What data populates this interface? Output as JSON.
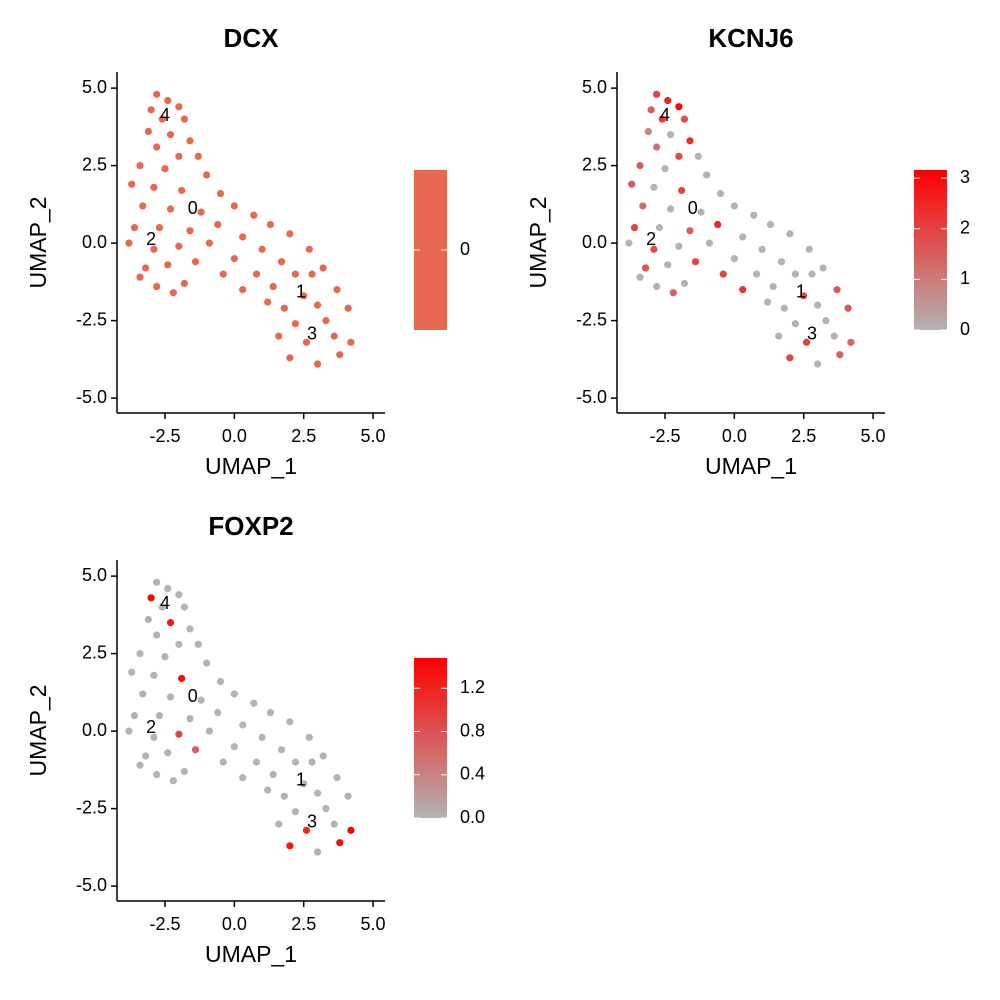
{
  "chart_data": [
    {
      "type": "scatter",
      "title": "DCX",
      "xlabel": "UMAP_1",
      "ylabel": "UMAP_2",
      "x": [
        -2.8,
        -2.4,
        -2.0,
        -3.0,
        -2.6,
        -1.8,
        -3.1,
        -2.3,
        -1.6,
        -2.8,
        -1.3,
        -2.0,
        -3.4,
        -2.5,
        -1.0,
        -3.7,
        -2.9,
        -1.9,
        -0.5,
        -3.3,
        -2.3,
        -1.2,
        0.0,
        -3.6,
        -2.7,
        -1.6,
        -0.6,
        0.7,
        -3.8,
        -2.9,
        -2.0,
        -0.9,
        0.3,
        1.3,
        -3.2,
        -2.4,
        -1.4,
        0.0,
        1.0,
        2.0,
        -2.8,
        -1.8,
        -0.4,
        0.8,
        1.7,
        2.7,
        -2.2,
        0.3,
        1.4,
        2.2,
        3.2,
        3.7,
        2.5,
        1.8,
        3.0,
        4.1,
        2.2,
        3.3,
        1.6,
        2.6,
        3.6,
        4.2,
        2.0,
        3.0,
        3.8,
        1.2,
        -3.4,
        2.8
      ],
      "y": [
        4.8,
        4.6,
        4.4,
        4.3,
        4.0,
        4.0,
        3.6,
        3.5,
        3.3,
        3.1,
        2.8,
        2.8,
        2.5,
        2.4,
        2.2,
        1.9,
        1.8,
        1.7,
        1.6,
        1.2,
        1.1,
        1.0,
        1.2,
        0.5,
        0.5,
        0.4,
        0.6,
        0.9,
        0.0,
        -0.2,
        -0.1,
        0.0,
        0.2,
        0.6,
        -0.8,
        -0.7,
        -0.6,
        -0.5,
        -0.2,
        0.3,
        -1.4,
        -1.3,
        -1.0,
        -1.0,
        -0.6,
        -0.2,
        -1.6,
        -1.5,
        -1.4,
        -1.0,
        -0.8,
        -1.5,
        -1.7,
        -2.1,
        -2.0,
        -2.1,
        -2.6,
        -2.5,
        -3.0,
        -3.2,
        -3.0,
        -3.2,
        -3.7,
        -3.9,
        -3.6,
        -1.9,
        -1.1,
        -1.0
      ],
      "values": [
        0,
        0,
        0,
        0,
        0,
        0,
        0,
        0,
        0,
        0,
        0,
        0,
        0,
        0,
        0,
        0,
        0,
        0,
        0,
        0,
        0,
        0,
        0,
        0,
        0,
        0,
        0,
        0,
        0,
        0,
        0,
        0,
        0,
        0,
        0,
        0,
        0,
        0,
        0,
        0,
        0,
        0,
        0,
        0,
        0,
        0,
        0,
        0,
        0,
        0,
        0,
        0,
        0,
        0,
        0,
        0,
        0,
        0,
        0,
        0,
        0,
        0,
        0,
        0,
        0,
        0,
        0,
        0
      ],
      "colors": [
        "#e8684f",
        "#e8684f"
      ],
      "clim": [
        -0.5,
        0.5
      ],
      "cticks": [
        0
      ],
      "xlim": [
        -4.23,
        5.43
      ],
      "ylim": [
        -5.48,
        5.52
      ],
      "xticks": [
        -2.5,
        {
          "value": 0,
          "label": "0.0"
        },
        2.5,
        {
          "value": 5,
          "label": "5.0"
        }
      ],
      "yticks": [
        {
          "value": -5,
          "label": "-5.0"
        },
        -2.5,
        {
          "value": 0,
          "label": "0.0"
        },
        2.5,
        {
          "value": 5,
          "label": "5.0"
        }
      ],
      "annotations": [
        {
          "text": "4",
          "x": -2.5,
          "y": 4.1
        },
        {
          "text": "0",
          "x": -1.5,
          "y": 1.1
        },
        {
          "text": "2",
          "x": -3.0,
          "y": 0.1
        },
        {
          "text": "1",
          "x": 2.4,
          "y": -1.6
        },
        {
          "text": "3",
          "x": 2.8,
          "y": -2.95
        }
      ]
    },
    {
      "type": "scatter",
      "title": "KCNJ6",
      "xlabel": "UMAP_1",
      "ylabel": "UMAP_2",
      "x": [
        -2.8,
        -2.4,
        -2.0,
        -3.0,
        -2.6,
        -1.8,
        -3.1,
        -2.3,
        -1.6,
        -2.8,
        -1.3,
        -2.0,
        -3.4,
        -2.5,
        -1.0,
        -3.7,
        -2.9,
        -1.9,
        -0.5,
        -3.3,
        -2.3,
        -1.2,
        0.0,
        -3.6,
        -2.7,
        -1.6,
        -0.6,
        0.7,
        -3.8,
        -2.9,
        -2.0,
        -0.9,
        0.3,
        1.3,
        -3.2,
        -2.4,
        -1.4,
        0.0,
        1.0,
        2.0,
        -2.8,
        -1.8,
        -0.4,
        0.8,
        1.7,
        2.7,
        -2.2,
        0.3,
        1.4,
        2.2,
        3.2,
        3.7,
        2.5,
        1.8,
        3.0,
        4.1,
        2.2,
        3.3,
        1.6,
        2.6,
        3.6,
        4.2,
        2.0,
        3.0,
        3.8,
        1.2,
        -3.4,
        2.8
      ],
      "y": [
        4.8,
        4.6,
        4.4,
        4.3,
        4.0,
        4.0,
        3.6,
        3.5,
        3.3,
        3.1,
        2.8,
        2.8,
        2.5,
        2.4,
        2.2,
        1.9,
        1.8,
        1.7,
        1.6,
        1.2,
        1.1,
        1.0,
        1.2,
        0.5,
        0.5,
        0.4,
        0.6,
        0.9,
        0.0,
        -0.2,
        -0.1,
        0.0,
        0.2,
        0.6,
        -0.8,
        -0.7,
        -0.6,
        -0.5,
        -0.2,
        0.3,
        -1.4,
        -1.3,
        -1.0,
        -1.0,
        -0.6,
        -0.2,
        -1.6,
        -1.5,
        -1.4,
        -1.0,
        -0.8,
        -1.5,
        -1.7,
        -2.1,
        -2.0,
        -2.1,
        -2.6,
        -2.5,
        -3.0,
        -3.2,
        -3.0,
        -3.2,
        -3.7,
        -3.9,
        -3.6,
        -1.9,
        -1.1,
        -1.0
      ],
      "values": [
        2.0,
        2.5,
        3.1,
        1.5,
        2.2,
        1.8,
        0.8,
        0,
        2.4,
        1.2,
        0,
        1.9,
        1.5,
        0,
        0,
        1.6,
        0,
        2.0,
        0,
        1.3,
        0,
        0,
        0,
        2.0,
        0,
        1.5,
        2.5,
        0,
        0,
        1.8,
        0,
        0,
        0,
        0,
        1.7,
        0,
        1.9,
        0,
        0,
        0,
        0,
        0,
        2.0,
        0,
        0,
        0,
        1.5,
        2.3,
        0,
        0,
        0,
        1.6,
        1.8,
        0,
        0,
        1.7,
        0,
        0,
        0,
        2.0,
        0,
        1.4,
        1.9,
        0,
        1.5,
        0,
        0,
        0
      ],
      "colors": [
        "#b3b3b3",
        "#ff0000"
      ],
      "clim": [
        0,
        3.16
      ],
      "cticks": [
        0,
        1,
        2,
        3
      ],
      "xlim": [
        -4.23,
        5.43
      ],
      "ylim": [
        -5.48,
        5.52
      ],
      "xticks": [
        -2.5,
        {
          "value": 0,
          "label": "0.0"
        },
        2.5,
        {
          "value": 5,
          "label": "5.0"
        }
      ],
      "yticks": [
        {
          "value": -5,
          "label": "-5.0"
        },
        -2.5,
        {
          "value": 0,
          "label": "0.0"
        },
        2.5,
        {
          "value": 5,
          "label": "5.0"
        }
      ],
      "annotations": [
        {
          "text": "4",
          "x": -2.5,
          "y": 4.1
        },
        {
          "text": "0",
          "x": -1.5,
          "y": 1.1
        },
        {
          "text": "2",
          "x": -3.0,
          "y": 0.1
        },
        {
          "text": "1",
          "x": 2.4,
          "y": -1.6
        },
        {
          "text": "3",
          "x": 2.8,
          "y": -2.95
        }
      ]
    },
    {
      "type": "scatter",
      "title": "FOXP2",
      "xlabel": "UMAP_1",
      "ylabel": "UMAP_2",
      "x": [
        -2.8,
        -2.4,
        -2.0,
        -3.0,
        -2.6,
        -1.8,
        -3.1,
        -2.3,
        -1.6,
        -2.8,
        -1.3,
        -2.0,
        -3.4,
        -2.5,
        -1.0,
        -3.7,
        -2.9,
        -1.9,
        -0.5,
        -3.3,
        -2.3,
        -1.2,
        0.0,
        -3.6,
        -2.7,
        -1.6,
        -0.6,
        0.7,
        -3.8,
        -2.9,
        -2.0,
        -0.9,
        0.3,
        1.3,
        -3.2,
        -2.4,
        -1.4,
        0.0,
        1.0,
        2.0,
        -2.8,
        -1.8,
        -0.4,
        0.8,
        1.7,
        2.7,
        -2.2,
        0.3,
        1.4,
        2.2,
        3.2,
        3.7,
        2.5,
        1.8,
        3.0,
        4.1,
        2.2,
        3.3,
        1.6,
        2.6,
        3.6,
        4.2,
        2.0,
        3.0,
        3.8,
        1.2,
        -3.4,
        2.8
      ],
      "y": [
        4.8,
        4.6,
        4.4,
        4.3,
        4.0,
        4.0,
        3.6,
        3.5,
        3.3,
        3.1,
        2.8,
        2.8,
        2.5,
        2.4,
        2.2,
        1.9,
        1.8,
        1.7,
        1.6,
        1.2,
        1.1,
        1.0,
        1.2,
        0.5,
        0.5,
        0.4,
        0.6,
        0.9,
        0.0,
        -0.2,
        -0.1,
        0.0,
        0.2,
        0.6,
        -0.8,
        -0.7,
        -0.6,
        -0.5,
        -0.2,
        0.3,
        -1.4,
        -1.3,
        -1.0,
        -1.0,
        -0.6,
        -0.2,
        -1.6,
        -1.5,
        -1.4,
        -1.0,
        -0.8,
        -1.5,
        -1.7,
        -2.1,
        -2.0,
        -2.1,
        -2.6,
        -2.5,
        -3.0,
        -3.2,
        -3.0,
        -3.2,
        -3.7,
        -3.9,
        -3.6,
        -1.9,
        -1.1,
        -1.0
      ],
      "values": [
        0,
        0,
        0,
        1.45,
        0,
        0,
        0,
        1.3,
        0,
        0,
        0,
        0,
        0,
        0,
        0,
        0,
        0,
        1.4,
        0,
        0,
        0,
        0,
        0,
        0,
        0,
        0,
        0,
        0,
        0,
        0,
        0.9,
        0,
        0,
        0,
        0,
        0,
        0.7,
        0,
        0,
        0,
        0,
        0,
        0,
        0,
        0,
        0,
        0,
        0,
        0,
        0,
        0,
        0,
        0,
        0,
        0,
        0,
        0,
        0,
        0,
        1.2,
        0,
        1.5,
        1.3,
        0,
        1.4,
        0,
        0,
        0
      ],
      "colors": [
        "#b3b3b3",
        "#ff0000"
      ],
      "clim": [
        0,
        1.48
      ],
      "cticks": [
        {
          "value": 0,
          "label": "0.0"
        },
        0.4,
        0.8,
        1.2
      ],
      "xlim": [
        -4.23,
        5.43
      ],
      "ylim": [
        -5.48,
        5.52
      ],
      "xticks": [
        -2.5,
        {
          "value": 0,
          "label": "0.0"
        },
        2.5,
        {
          "value": 5,
          "label": "5.0"
        }
      ],
      "yticks": [
        {
          "value": -5,
          "label": "-5.0"
        },
        -2.5,
        {
          "value": 0,
          "label": "0.0"
        },
        2.5,
        {
          "value": 5,
          "label": "5.0"
        }
      ],
      "annotations": [
        {
          "text": "4",
          "x": -2.5,
          "y": 4.1
        },
        {
          "text": "0",
          "x": -1.5,
          "y": 1.1
        },
        {
          "text": "2",
          "x": -3.0,
          "y": 0.1
        },
        {
          "text": "1",
          "x": 2.4,
          "y": -1.6
        },
        {
          "text": "3",
          "x": 2.8,
          "y": -2.95
        }
      ]
    }
  ]
}
